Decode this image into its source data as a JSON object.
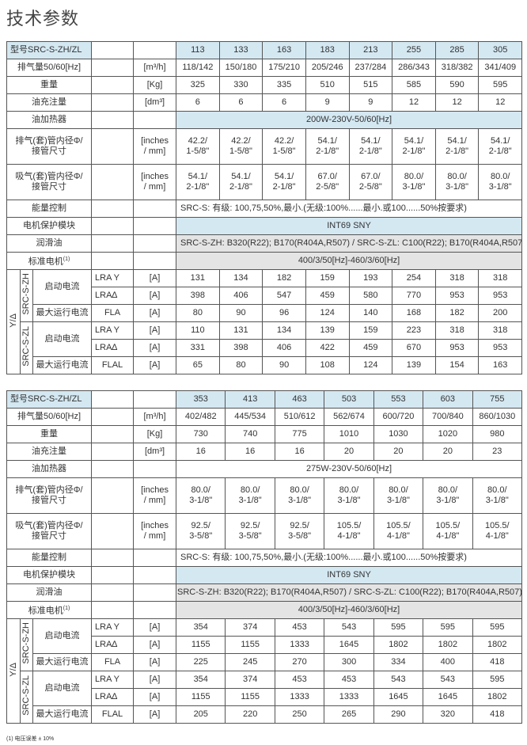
{
  "page_title": "技术参数",
  "footnote": "(1) 电压误差 ± 10%",
  "colors": {
    "header_blue": "#d4e8f2",
    "row_gray": "#e4e4e4",
    "border": "#555555"
  },
  "tables": [
    {
      "model_label": "型号SRC-S-ZH/ZL",
      "models": [
        "113",
        "133",
        "163",
        "183",
        "213",
        "255",
        "285",
        "305"
      ],
      "rows": [
        {
          "type": "values",
          "label": "排气量50/60[Hz]",
          "unit": "[m³/h]",
          "values": [
            "118/142",
            "150/180",
            "175/210",
            "205/246",
            "237/284",
            "286/343",
            "318/382",
            "341/409"
          ]
        },
        {
          "type": "values",
          "label": "重量",
          "unit": "[Kg]",
          "values": [
            "325",
            "330",
            "335",
            "510",
            "515",
            "585",
            "590",
            "595"
          ]
        },
        {
          "type": "values",
          "label": "油充注量",
          "unit": "[dm³]",
          "values": [
            "6",
            "6",
            "6",
            "9",
            "9",
            "12",
            "12",
            "12"
          ]
        },
        {
          "type": "span",
          "label": "油加热器",
          "text": "200W-230V-50/60[Hz]",
          "bg": "blue"
        },
        {
          "type": "tall",
          "label": "排气(套)管内径Φ/\n接管尺寸",
          "unit": "[inches\n/ mm]",
          "values": [
            "42.2/\n1-5/8\"",
            "42.2/\n1-5/8\"",
            "42.2/\n1-5/8\"",
            "54.1/\n2-1/8\"",
            "54.1/\n2-1/8\"",
            "54.1/\n2-1/8\"",
            "54.1/\n2-1/8\"",
            "54.1/\n2-1/8\""
          ]
        },
        {
          "type": "tall",
          "label": "吸气(套)管内径Φ/\n接管尺寸",
          "unit": "[inches\n/ mm]",
          "values": [
            "54.1/\n2-1/8\"",
            "54.1/\n2-1/8\"",
            "54.1/\n2-1/8\"",
            "67.0/\n2-5/8\"",
            "67.0/\n2-5/8\"",
            "80.0/\n3-1/8\"",
            "80.0/\n3-1/8\"",
            "80.0/\n3-1/8\""
          ]
        },
        {
          "type": "span",
          "label": "能量控制",
          "text": "SRC-S: 有级: 100,75,50%,最小.(无级:100%......最小.或100......50%按要求)",
          "bg": "",
          "align": "left"
        },
        {
          "type": "span",
          "label": "电机保护模块",
          "text": "INT69 SNY",
          "bg": "blue"
        },
        {
          "type": "span",
          "label": "润滑油",
          "text": "SRC-S-ZH: B320(R22); B170(R404A,R507) / SRC-S-ZL: C100(R22); B170(R404A,R507)",
          "bg": "gray",
          "align": "left"
        },
        {
          "type": "span",
          "label": "标准电机",
          "sup": "(1)",
          "text": "400/3/50[Hz]-460/3/60[Hz]",
          "bg": "gray"
        }
      ],
      "currents": {
        "connection": "Y/Δ",
        "unit": "[A]",
        "groups": [
          {
            "series": "SRC-S-ZH",
            "start_label": "启动电流",
            "max_label": "最大运行电流",
            "lra_y": {
              "code": "LRA Y",
              "values": [
                "131",
                "134",
                "182",
                "159",
                "193",
                "254",
                "318",
                "318"
              ]
            },
            "lra_d": {
              "code": "LRA∆",
              "values": [
                "398",
                "406",
                "547",
                "459",
                "580",
                "770",
                "953",
                "953"
              ]
            },
            "fla": {
              "code": "FLA",
              "values": [
                "80",
                "90",
                "96",
                "124",
                "140",
                "168",
                "182",
                "200"
              ]
            }
          },
          {
            "series": "SRC-S-ZL",
            "start_label": "启动电流",
            "max_label": "最大运行电流",
            "lra_y": {
              "code": "LRA Y",
              "values": [
                "110",
                "131",
                "134",
                "139",
                "159",
                "223",
                "318",
                "318"
              ]
            },
            "lra_d": {
              "code": "LRA∆",
              "values": [
                "331",
                "398",
                "406",
                "422",
                "459",
                "670",
                "953",
                "953"
              ]
            },
            "fla": {
              "code": "FLAL",
              "values": [
                "65",
                "80",
                "90",
                "108",
                "124",
                "139",
                "154",
                "163"
              ]
            }
          }
        ]
      }
    },
    {
      "model_label": "型号SRC-S-ZH/ZL",
      "models": [
        "353",
        "413",
        "463",
        "503",
        "553",
        "603",
        "755"
      ],
      "rows": [
        {
          "type": "values",
          "label": "排气量50/60[Hz]",
          "unit": "[m³/h]",
          "values": [
            "402/482",
            "445/534",
            "510/612",
            "562/674",
            "600/720",
            "700/840",
            "860/1030"
          ]
        },
        {
          "type": "values",
          "label": "重量",
          "unit": "[Kg]",
          "values": [
            "730",
            "740",
            "775",
            "1010",
            "1030",
            "1020",
            "980"
          ]
        },
        {
          "type": "values",
          "label": "油充注量",
          "unit": "[dm³]",
          "values": [
            "16",
            "16",
            "16",
            "20",
            "20",
            "20",
            "23"
          ]
        },
        {
          "type": "span",
          "label": "油加热器",
          "text": "275W-230V-50/60[Hz]",
          "bg": ""
        },
        {
          "type": "tall",
          "label": "排气(套)管内径Φ/\n接管尺寸",
          "unit": "[inches\n/ mm]",
          "values": [
            "80.0/\n3-1/8\"",
            "80.0/\n3-1/8\"",
            "80.0/\n3-1/8\"",
            "80.0/\n3-1/8\"",
            "80.0/\n3-1/8\"",
            "80.0/\n3-1/8\"",
            "80.0/\n3-1/8\""
          ]
        },
        {
          "type": "tall",
          "label": "吸气(套)管内径Φ/\n接管尺寸",
          "unit": "[inches\n/ mm]",
          "values": [
            "92.5/\n3-5/8\"",
            "92.5/\n3-5/8\"",
            "92.5/\n3-5/8\"",
            "105.5/\n4-1/8\"",
            "105.5/\n4-1/8\"",
            "105.5/\n4-1/8\"",
            "105.5/\n4-1/8\""
          ]
        },
        {
          "type": "span",
          "label": "能量控制",
          "text": "SRC-S: 有级: 100,75,50%,最小.(无级:100%......最小.或100......50%按要求)",
          "bg": "",
          "align": "left"
        },
        {
          "type": "span",
          "label": "电机保护模块",
          "text": "INT69 SNY",
          "bg": "blue"
        },
        {
          "type": "span",
          "label": "润滑油",
          "text": "SRC-S-ZH: B320(R22); B170(R404A,R507) / SRC-S-ZL: C100(R22); B170(R404A,R507)",
          "bg": "gray"
        },
        {
          "type": "span",
          "label": "标准电机",
          "sup": "(1)",
          "text": "400/3/50[Hz]-460/3/60[Hz]",
          "bg": "gray"
        }
      ],
      "currents": {
        "connection": "Y/Δ",
        "unit": "[A]",
        "groups": [
          {
            "series": "SRC-S-ZH",
            "start_label": "启动电流",
            "max_label": "最大运行电流",
            "lra_y": {
              "code": "LRA Y",
              "values": [
                "354",
                "374",
                "453",
                "543",
                "595",
                "595",
                "595"
              ]
            },
            "lra_d": {
              "code": "LRA∆",
              "values": [
                "1155",
                "1155",
                "1333",
                "1645",
                "1802",
                "1802",
                "1802"
              ]
            },
            "fla": {
              "code": "FLA",
              "values": [
                "225",
                "245",
                "270",
                "300",
                "334",
                "400",
                "418"
              ]
            }
          },
          {
            "series": "SRC-S-ZL",
            "start_label": "启动电流",
            "max_label": "最大运行电流",
            "lra_y": {
              "code": "LRA Y",
              "values": [
                "354",
                "374",
                "453",
                "453",
                "543",
                "543",
                "595"
              ]
            },
            "lra_d": {
              "code": "LRA∆",
              "values": [
                "1155",
                "1155",
                "1333",
                "1333",
                "1645",
                "1645",
                "1802"
              ]
            },
            "fla": {
              "code": "FLAL",
              "values": [
                "205",
                "220",
                "250",
                "265",
                "290",
                "320",
                "418"
              ]
            }
          }
        ]
      }
    }
  ]
}
